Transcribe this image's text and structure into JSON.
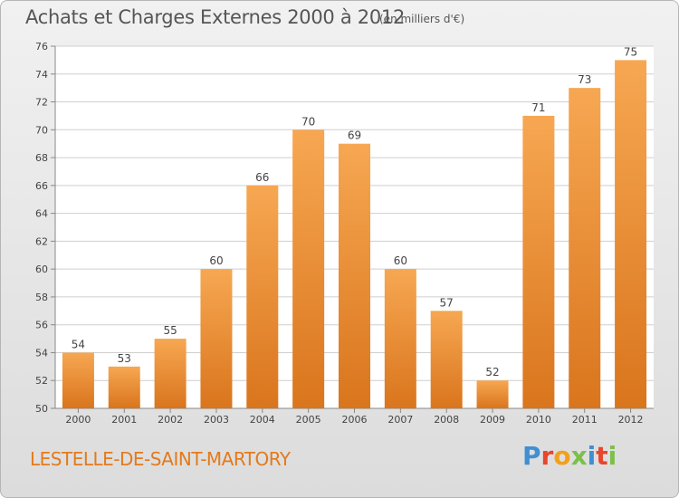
{
  "header": {
    "title": "Achats et Charges Externes 2000 à 2012",
    "unit": "(en milliers d'€)"
  },
  "footer": {
    "commune": "LESTELLE-DE-SAINT-MARTORY",
    "logo": "Proxiti",
    "logo_colors": [
      "#3f8fd2",
      "#e8452c",
      "#f2a01c",
      "#7cc04a",
      "#3f8fd2",
      "#e8452c",
      "#7cc04a"
    ]
  },
  "colors": {
    "bar_top": "#f7a752",
    "bar_bottom": "#d9751d",
    "grid": "#cfcfcf",
    "axis_text": "#444444"
  },
  "chart_data": {
    "type": "bar",
    "title": "Achats et Charges Externes 2000 à 2012",
    "subtitle": "(en milliers d'€)",
    "xlabel": "",
    "ylabel": "",
    "categories": [
      "2000",
      "2001",
      "2002",
      "2003",
      "2004",
      "2005",
      "2006",
      "2007",
      "2008",
      "2009",
      "2010",
      "2011",
      "2012"
    ],
    "values": [
      54,
      53,
      55,
      60,
      66,
      70,
      69,
      60,
      57,
      52,
      71,
      73,
      75
    ],
    "data_labels": [
      "54",
      "53",
      "55",
      "60",
      "66",
      "70",
      "69",
      "60",
      "57",
      "52",
      "71",
      "73",
      "75"
    ],
    "ylim": [
      50,
      76
    ],
    "yticks": [
      "50",
      "52",
      "54",
      "56",
      "58",
      "60",
      "62",
      "64",
      "66",
      "68",
      "70",
      "72",
      "74",
      "76"
    ],
    "grid": true,
    "legend": "none"
  }
}
